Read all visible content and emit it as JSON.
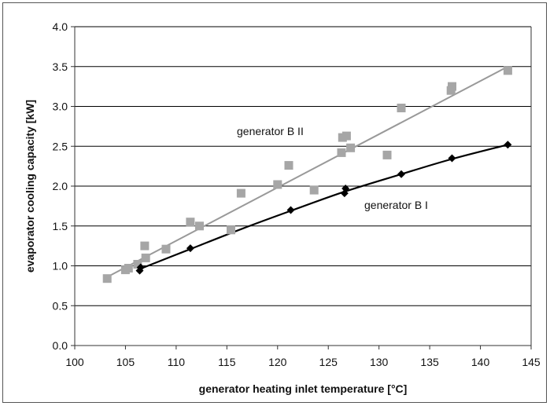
{
  "chart_data": {
    "type": "scatter",
    "title": "",
    "xlabel": "generator heating inlet temperature [°C]",
    "ylabel": "evaporator cooling capacity [kW]",
    "xlim": [
      100,
      145
    ],
    "ylim": [
      0.0,
      4.0
    ],
    "x_ticks": [
      "100",
      "105",
      "110",
      "115",
      "120",
      "125",
      "130",
      "135",
      "140",
      "145"
    ],
    "y_ticks": [
      "0.0",
      "0.5",
      "1.0",
      "1.5",
      "2.0",
      "2.5",
      "3.0",
      "3.5",
      "4.0"
    ],
    "grid": "horizontal",
    "series": [
      {
        "name": "generator B II",
        "marker": "square",
        "color": "#a6a6a6",
        "points": [
          [
            103.2,
            0.84
          ],
          [
            105.0,
            0.95
          ],
          [
            105.3,
            0.97
          ],
          [
            106.2,
            1.02
          ],
          [
            107.0,
            1.1
          ],
          [
            106.9,
            1.25
          ],
          [
            109.0,
            1.21
          ],
          [
            111.4,
            1.55
          ],
          [
            112.3,
            1.5
          ],
          [
            115.4,
            1.45
          ],
          [
            116.4,
            1.91
          ],
          [
            120.0,
            2.02
          ],
          [
            121.1,
            2.26
          ],
          [
            123.6,
            1.95
          ],
          [
            126.3,
            2.42
          ],
          [
            126.4,
            2.61
          ],
          [
            126.8,
            2.63
          ],
          [
            127.2,
            2.48
          ],
          [
            130.8,
            2.39
          ],
          [
            132.2,
            2.98
          ],
          [
            137.1,
            3.2
          ],
          [
            137.2,
            3.25
          ],
          [
            142.7,
            3.45
          ]
        ],
        "trendline": [
          [
            103.2,
            0.86
          ],
          [
            142.7,
            3.5
          ]
        ]
      },
      {
        "name": "generator B I",
        "marker": "diamond",
        "color": "#000000",
        "points": [
          [
            106.4,
            0.94
          ],
          [
            106.5,
            0.98
          ],
          [
            111.4,
            1.22
          ],
          [
            121.3,
            1.7
          ],
          [
            126.6,
            1.91
          ],
          [
            126.7,
            1.97
          ],
          [
            132.2,
            2.15
          ],
          [
            137.2,
            2.35
          ],
          [
            142.7,
            2.52
          ]
        ],
        "trendline": [
          [
            106.4,
            0.96
          ],
          [
            111.4,
            1.21
          ],
          [
            116.4,
            1.46
          ],
          [
            121.3,
            1.69
          ],
          [
            126.6,
            1.93
          ],
          [
            132.2,
            2.15
          ],
          [
            137.2,
            2.34
          ],
          [
            142.7,
            2.52
          ]
        ]
      }
    ],
    "annotations": [
      "generator B II",
      "generator B I"
    ]
  },
  "colors": {
    "grid": "#000000",
    "axis": "#333333",
    "series_B2": "#a6a6a6",
    "series_B1": "#000000",
    "trend_B2": "#999999",
    "trend_B1": "#000000"
  }
}
